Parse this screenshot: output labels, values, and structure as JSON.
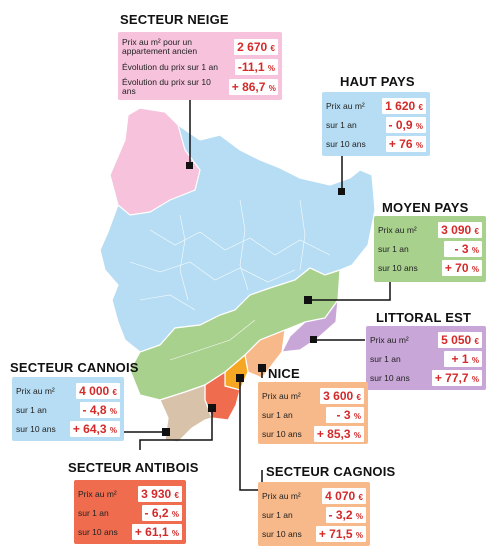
{
  "sectors": {
    "neige": {
      "title": "SECTEUR NEIGE",
      "rows": [
        {
          "label": "Prix au m² pour un appartement ancien",
          "value": "2 670",
          "unit": "€"
        },
        {
          "label": "Évolution du prix sur 1 an",
          "value": "-11,1",
          "unit": "%"
        },
        {
          "label": "Évolution du prix sur 10 ans",
          "value": "+ 86,7",
          "unit": "%"
        }
      ]
    },
    "haut_pays": {
      "title": "HAUT PAYS",
      "rows": [
        {
          "label": "Prix au m²",
          "value": "1 620",
          "unit": "€"
        },
        {
          "label": "sur 1 an",
          "value": "- 0,9",
          "unit": "%"
        },
        {
          "label": "sur 10 ans",
          "value": "+ 76",
          "unit": "%"
        }
      ]
    },
    "moyen_pays": {
      "title": "MOYEN PAYS",
      "rows": [
        {
          "label": "Prix au m²",
          "value": "3 090",
          "unit": "€"
        },
        {
          "label": "sur 1 an",
          "value": "- 3",
          "unit": "%"
        },
        {
          "label": "sur 10 ans",
          "value": "+ 70",
          "unit": "%"
        }
      ]
    },
    "littoral_est": {
      "title": "LITTORAL EST",
      "rows": [
        {
          "label": "Prix au m²",
          "value": "5 050",
          "unit": "€"
        },
        {
          "label": "sur 1 an",
          "value": "+ 1",
          "unit": "%"
        },
        {
          "label": "sur 10 ans",
          "value": "+ 77,7",
          "unit": "%"
        }
      ]
    },
    "cannois": {
      "title": "SECTEUR CANNOIS",
      "rows": [
        {
          "label": "Prix au m²",
          "value": "4 000",
          "unit": "€"
        },
        {
          "label": "sur 1 an",
          "value": "- 4,8",
          "unit": "%"
        },
        {
          "label": "sur 10 ans",
          "value": "+ 64,3",
          "unit": "%"
        }
      ]
    },
    "nice": {
      "title": "NICE",
      "rows": [
        {
          "label": "Prix au m²",
          "value": "3 600",
          "unit": "€"
        },
        {
          "label": "sur 1 an",
          "value": "- 3",
          "unit": "%"
        },
        {
          "label": "sur 10 ans",
          "value": "+ 85,3",
          "unit": "%"
        }
      ]
    },
    "antibois": {
      "title": "SECTEUR ANTIBOIS",
      "rows": [
        {
          "label": "Prix au m²",
          "value": "3 930",
          "unit": "€"
        },
        {
          "label": "sur 1 an",
          "value": "- 6,2",
          "unit": "%"
        },
        {
          "label": "sur 10 ans",
          "value": "+ 61,1",
          "unit": "%"
        }
      ]
    },
    "cagnois": {
      "title": "SECTEUR CAGNOIS",
      "rows": [
        {
          "label": "Prix au m²",
          "value": "4 070",
          "unit": "€"
        },
        {
          "label": "sur 1 an",
          "value": "- 3,2",
          "unit": "%"
        },
        {
          "label": "sur 10 ans",
          "value": "+ 71,5",
          "unit": "%"
        }
      ]
    }
  },
  "colors": {
    "neige": "#f6c2dc",
    "haut_pays": "#b6ddf3",
    "moyen_pays": "#a9d18e",
    "littoral_est": "#c9a6d8",
    "nice": "#f7b98a",
    "antibois": "#ef6c4f",
    "cannois": "#d8c2aa",
    "cagnois": "#f5a623",
    "value_text": "#d42a2a"
  }
}
